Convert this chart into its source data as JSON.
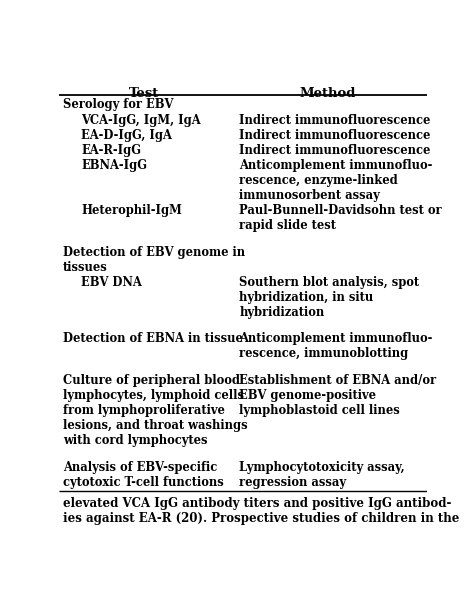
{
  "title_col1": "Test",
  "title_col2": "Method",
  "bg_color": "#ffffff",
  "text_color": "#000000",
  "font_family": "serif",
  "figsize": [
    4.74,
    6.01
  ],
  "dpi": 100,
  "rows": [
    {
      "test": "Serology for EBV",
      "method": "",
      "test_indent": 0
    },
    {
      "test": "VCA-IgG, IgM, IgA",
      "method": "Indirect immunofluorescence",
      "test_indent": 1
    },
    {
      "test": "EA-D-IgG, IgA",
      "method": "Indirect immunofluorescence",
      "test_indent": 1
    },
    {
      "test": "EA-R-IgG",
      "method": "Indirect immunofluorescence",
      "test_indent": 1
    },
    {
      "test": "EBNA-IgG",
      "method": "Anticomplement immunofluo-\nrescence, enzyme-linked\nimmunosorbent assay",
      "test_indent": 1
    },
    {
      "test": "Heterophil-IgM",
      "method": "Paul-Bunnell-Davidsohn test or\nrapid slide test",
      "test_indent": 1
    },
    {
      "test": "Detection of EBV genome in\ntissues",
      "method": "",
      "test_indent": 0
    },
    {
      "test": "EBV DNA",
      "method": "Southern blot analysis, spot\nhybridization, in situ\nhybridization",
      "test_indent": 1
    },
    {
      "test": "Detection of EBNA in tissue",
      "method": "Anticomplement immunofluo-\nrescence, immunoblotting",
      "test_indent": 0
    },
    {
      "test": "Culture of peripheral blood\nlymphocytes, lymphoid cells\nfrom lymphoproliferative\nlesions, and throat washings\nwith cord lymphocytes",
      "method": "Establishment of EBNA and/or\nEBV genome-positive\nlymphoblastoid cell lines",
      "test_indent": 0
    },
    {
      "test": "Analysis of EBV-specific\ncytotoxic T-cell functions",
      "method": "Lymphocytotoxicity assay,\nregression assay",
      "test_indent": 0
    }
  ],
  "footer_text": "elevated VCA IgG antibody titers and positive IgG antibod-\nies against EA-R (20). Prospective studies of children in the",
  "group_breaks": [
    6,
    8,
    9,
    10
  ],
  "col_split": 0.46,
  "header_fontsize": 9.5,
  "body_fontsize": 8.3,
  "footer_fontsize": 8.5
}
